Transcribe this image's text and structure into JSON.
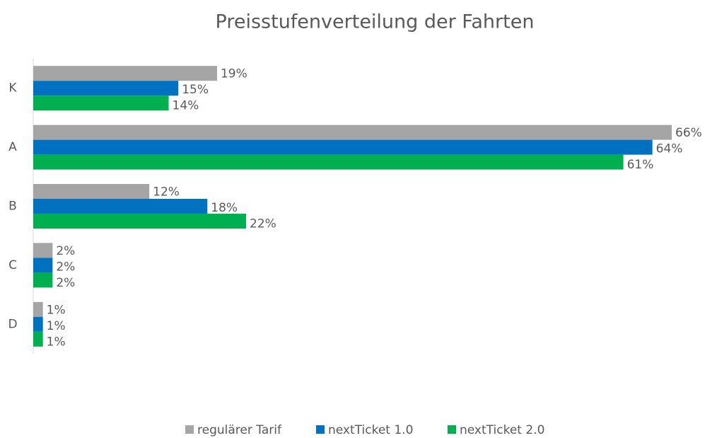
{
  "chart_data": {
    "type": "hbar",
    "title": "Preisstufenverteilung der Fahrten",
    "categories": [
      "K",
      "A",
      "B",
      "C",
      "D"
    ],
    "series": [
      {
        "name": "regulärer Tarif",
        "color": "#a5a5a5",
        "values": [
          19,
          66,
          12,
          2,
          1
        ],
        "value_labels": [
          "19%",
          "66%",
          "12%",
          "2%",
          "1%"
        ]
      },
      {
        "name": "nextTicket 1.0",
        "color": "#0070c0",
        "values": [
          15,
          64,
          18,
          2,
          1
        ],
        "value_labels": [
          "15%",
          "64%",
          "18%",
          "2%",
          "1%"
        ]
      },
      {
        "name": "nextTicket 2.0",
        "color": "#00b050",
        "values": [
          14,
          61,
          22,
          2,
          1
        ],
        "value_labels": [
          "14%",
          "61%",
          "22%",
          "2%",
          "1%"
        ]
      }
    ],
    "legend": "bottom"
  }
}
